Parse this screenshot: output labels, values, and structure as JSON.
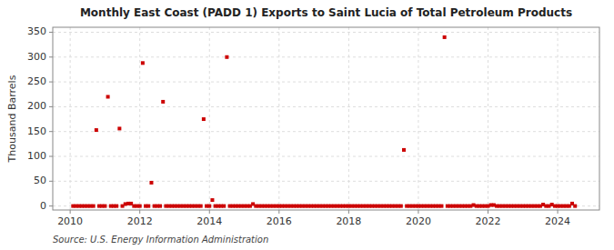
{
  "chart_data": {
    "type": "scatter",
    "title": "Monthly East Coast (PADD 1) Exports to Saint Lucia of Total Petroleum Products",
    "ylabel": "Thousand Barrels",
    "source": "Source: U.S. Energy Information Administration",
    "color": "#cc0000",
    "marker": "square",
    "grid": true,
    "xlim": [
      2009.5,
      2025.2
    ],
    "ylim": [
      -8,
      360
    ],
    "xticks": [
      2010,
      2012,
      2014,
      2016,
      2018,
      2020,
      2022,
      2024
    ],
    "yticks": [
      0,
      50,
      100,
      150,
      200,
      250,
      300,
      350
    ],
    "x": [
      2010.0833,
      2010.1667,
      2010.25,
      2010.3333,
      2010.4167,
      2010.5,
      2010.5833,
      2010.6667,
      2010.75,
      2010.8333,
      2010.9167,
      2011.0,
      2011.0833,
      2011.1667,
      2011.25,
      2011.3333,
      2011.4167,
      2011.5,
      2011.5833,
      2011.6667,
      2011.75,
      2011.8333,
      2011.9167,
      2012.0,
      2012.0833,
      2012.1667,
      2012.25,
      2012.3333,
      2012.4167,
      2012.5,
      2012.5833,
      2012.6667,
      2012.75,
      2012.8333,
      2012.9167,
      2013.0,
      2013.0833,
      2013.1667,
      2013.25,
      2013.3333,
      2013.4167,
      2013.5,
      2013.5833,
      2013.6667,
      2013.75,
      2013.8333,
      2013.9167,
      2014.0,
      2014.0833,
      2014.1667,
      2014.25,
      2014.3333,
      2014.4167,
      2014.5,
      2014.5833,
      2014.6667,
      2014.75,
      2014.8333,
      2014.9167,
      2015.0,
      2015.0833,
      2015.1667,
      2015.25,
      2015.3333,
      2015.4167,
      2015.5,
      2015.5833,
      2015.6667,
      2015.75,
      2015.8333,
      2015.9167,
      2016.0,
      2016.0833,
      2016.1667,
      2016.25,
      2016.3333,
      2016.4167,
      2016.5,
      2016.5833,
      2016.6667,
      2016.75,
      2016.8333,
      2016.9167,
      2017.0,
      2017.0833,
      2017.1667,
      2017.25,
      2017.3333,
      2017.4167,
      2017.5,
      2017.5833,
      2017.6667,
      2017.75,
      2017.8333,
      2017.9167,
      2018.0,
      2018.0833,
      2018.1667,
      2018.25,
      2018.3333,
      2018.4167,
      2018.5,
      2018.5833,
      2018.6667,
      2018.75,
      2018.8333,
      2018.9167,
      2019.0,
      2019.0833,
      2019.1667,
      2019.25,
      2019.3333,
      2019.4167,
      2019.5,
      2019.5833,
      2019.6667,
      2019.75,
      2019.8333,
      2019.9167,
      2020.0,
      2020.0833,
      2020.1667,
      2020.25,
      2020.3333,
      2020.4167,
      2020.5,
      2020.5833,
      2020.6667,
      2020.75,
      2020.8333,
      2020.9167,
      2021.0,
      2021.0833,
      2021.1667,
      2021.25,
      2021.3333,
      2021.4167,
      2021.5,
      2021.5833,
      2021.6667,
      2021.75,
      2021.8333,
      2021.9167,
      2022.0,
      2022.0833,
      2022.1667,
      2022.25,
      2022.3333,
      2022.4167,
      2022.5,
      2022.5833,
      2022.6667,
      2022.75,
      2022.8333,
      2022.9167,
      2023.0,
      2023.0833,
      2023.1667,
      2023.25,
      2023.3333,
      2023.4167,
      2023.5,
      2023.5833,
      2023.6667,
      2023.75,
      2023.8333,
      2023.9167,
      2024.0,
      2024.0833,
      2024.1667,
      2024.25,
      2024.3333,
      2024.4167,
      2024.5
    ],
    "values": [
      0,
      0,
      0,
      0,
      0,
      0,
      0,
      0,
      153,
      0,
      0,
      0,
      220,
      0,
      0,
      0,
      156,
      0,
      4,
      5,
      5,
      0,
      0,
      0,
      288,
      0,
      0,
      47,
      0,
      0,
      0,
      210,
      0,
      0,
      0,
      0,
      0,
      0,
      0,
      0,
      0,
      0,
      0,
      0,
      0,
      175,
      0,
      0,
      12,
      0,
      0,
      0,
      0,
      300,
      0,
      0,
      0,
      0,
      0,
      0,
      0,
      0,
      4,
      0,
      0,
      0,
      0,
      0,
      0,
      0,
      0,
      0,
      0,
      0,
      0,
      0,
      0,
      0,
      0,
      0,
      0,
      0,
      0,
      0,
      0,
      0,
      0,
      0,
      0,
      0,
      0,
      0,
      0,
      0,
      0,
      0,
      0,
      0,
      0,
      0,
      0,
      0,
      0,
      0,
      0,
      0,
      0,
      0,
      0,
      0,
      0,
      0,
      0,
      0,
      113,
      0,
      0,
      0,
      0,
      0,
      0,
      0,
      0,
      0,
      0,
      0,
      0,
      0,
      340,
      0,
      0,
      0,
      0,
      0,
      0,
      0,
      0,
      0,
      2,
      0,
      0,
      0,
      0,
      0,
      2,
      2,
      0,
      0,
      0,
      0,
      0,
      0,
      0,
      0,
      0,
      0,
      0,
      0,
      0,
      0,
      0,
      0,
      3,
      0,
      0,
      3,
      0,
      0,
      0,
      0,
      0,
      0,
      5,
      0
    ]
  }
}
